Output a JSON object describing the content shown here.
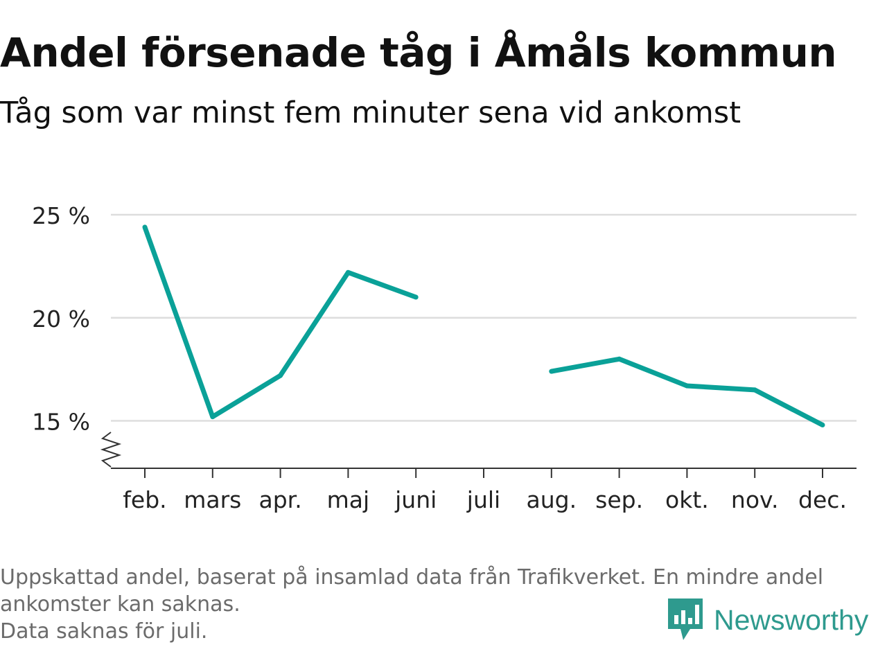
{
  "header": {
    "title": "Andel försenade tåg i Åmåls kommun",
    "subtitle": "Tåg som var minst fem minuter sena vid ankomst"
  },
  "chart_data": {
    "type": "line",
    "categories": [
      "feb.",
      "mars",
      "apr.",
      "maj",
      "juni",
      "juli",
      "aug.",
      "sep.",
      "okt.",
      "nov.",
      "dec."
    ],
    "series": [
      {
        "values": [
          24.4,
          15.2,
          17.2,
          22.2,
          21.0,
          null,
          17.4,
          18.0,
          16.7,
          16.5,
          14.8
        ]
      }
    ],
    "yticks": [
      15,
      20,
      25
    ],
    "ytick_labels": [
      "15 %",
      "20 %",
      "25 %"
    ],
    "ylim": [
      12.7,
      25
    ],
    "axis_break": true,
    "grid": true,
    "colors": {
      "line": "#0aa198",
      "grid": "#dddddd",
      "axis": "#333333"
    }
  },
  "footer": {
    "notes": [
      "Uppskattad andel, baserat på insamlad data från Trafikverket. En mindre andel",
      "ankomster kan saknas.",
      "Data saknas för juli."
    ],
    "brand": "Newsworthy",
    "brand_icon": "newsworthy-logo-icon",
    "brand_color": "#2e9a8e"
  }
}
